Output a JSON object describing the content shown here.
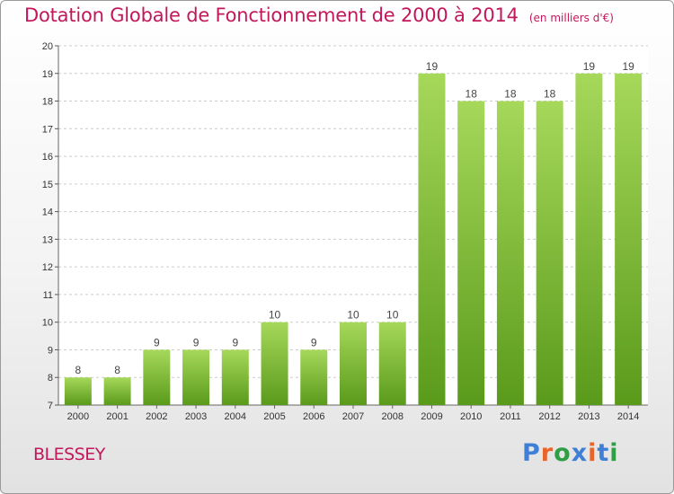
{
  "header": {
    "title": "Dotation Globale de Fonctionnement de 2000 à 2014",
    "unit": "(en milliers d'€)"
  },
  "footer": {
    "commune": "BLESSEY",
    "logo_text": "Proxiti"
  },
  "colors": {
    "title": "#c2185b",
    "bar_light": "#a6d85a",
    "bar_dark": "#5a9a1b",
    "grid": "#cccccc",
    "logo": [
      "#3f7fd6",
      "#e8642a",
      "#2f9e44",
      "#3f7fd6",
      "#e8642a",
      "#3f7fd6",
      "#2f9e44"
    ]
  },
  "chart_data": {
    "type": "bar",
    "categories": [
      "2000",
      "2001",
      "2002",
      "2003",
      "2004",
      "2005",
      "2006",
      "2007",
      "2008",
      "2009",
      "2010",
      "2011",
      "2012",
      "2013",
      "2014"
    ],
    "values": [
      8,
      8,
      9,
      9,
      9,
      10,
      9,
      10,
      10,
      19,
      18,
      18,
      18,
      19,
      19
    ],
    "data_labels": [
      "8",
      "8",
      "9",
      "9",
      "9",
      "10",
      "9",
      "10",
      "10",
      "19",
      "18",
      "18",
      "18",
      "19",
      "19"
    ],
    "yticks": [
      "7",
      "8",
      "9",
      "10",
      "11",
      "12",
      "13",
      "14",
      "15",
      "16",
      "17",
      "18",
      "19",
      "20"
    ],
    "ylim": [
      7,
      20
    ],
    "grid": true,
    "xlabel": "",
    "ylabel": ""
  }
}
